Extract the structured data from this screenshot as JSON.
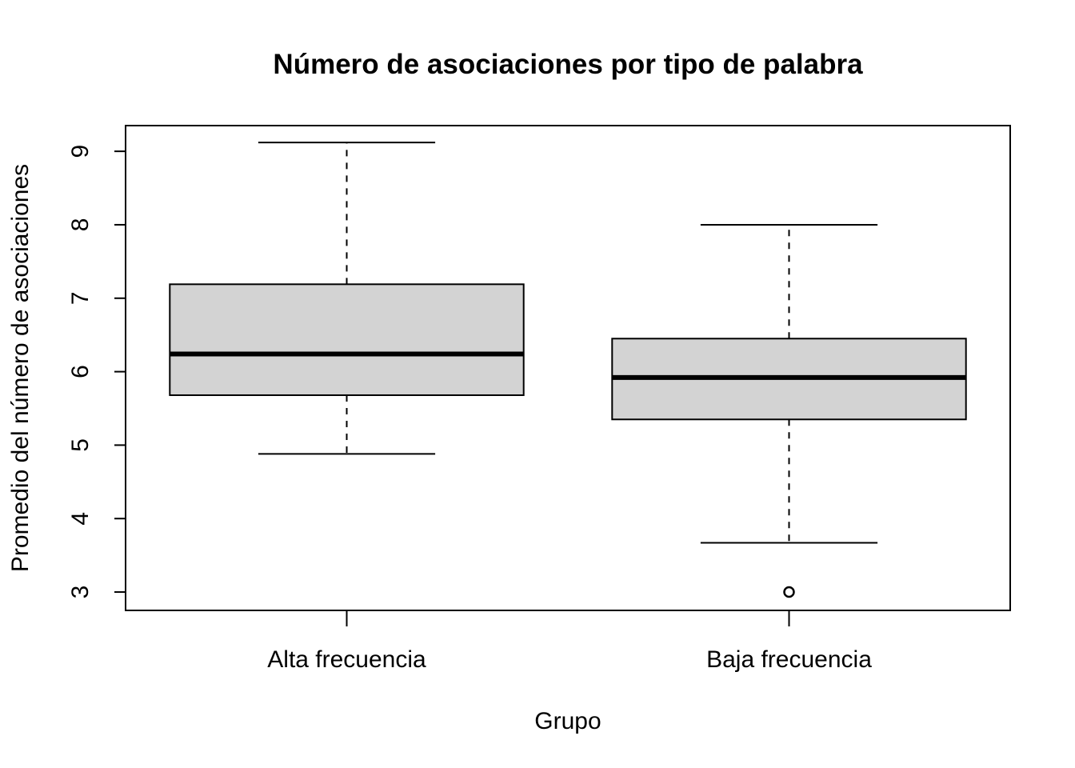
{
  "chart_data": {
    "type": "boxplot",
    "title": "Número de asociaciones por tipo de palabra",
    "xlabel": "Grupo",
    "ylabel": "Promedio del número de asociaciones",
    "ylim": [
      2.75,
      9.35
    ],
    "yticks": [
      3,
      4,
      5,
      6,
      7,
      8,
      9
    ],
    "grid": false,
    "box_fill": "#d3d3d3",
    "categories": [
      "Alta frecuencia",
      "Baja frecuencia"
    ],
    "series": [
      {
        "category": "Alta frecuencia",
        "whisker_low": 4.88,
        "q1": 5.68,
        "median": 6.24,
        "q3": 7.19,
        "whisker_high": 9.12,
        "outliers": []
      },
      {
        "category": "Baja frecuencia",
        "whisker_low": 3.67,
        "q1": 5.35,
        "median": 5.92,
        "q3": 6.45,
        "whisker_high": 8.0,
        "outliers": [
          3.0
        ]
      }
    ]
  }
}
